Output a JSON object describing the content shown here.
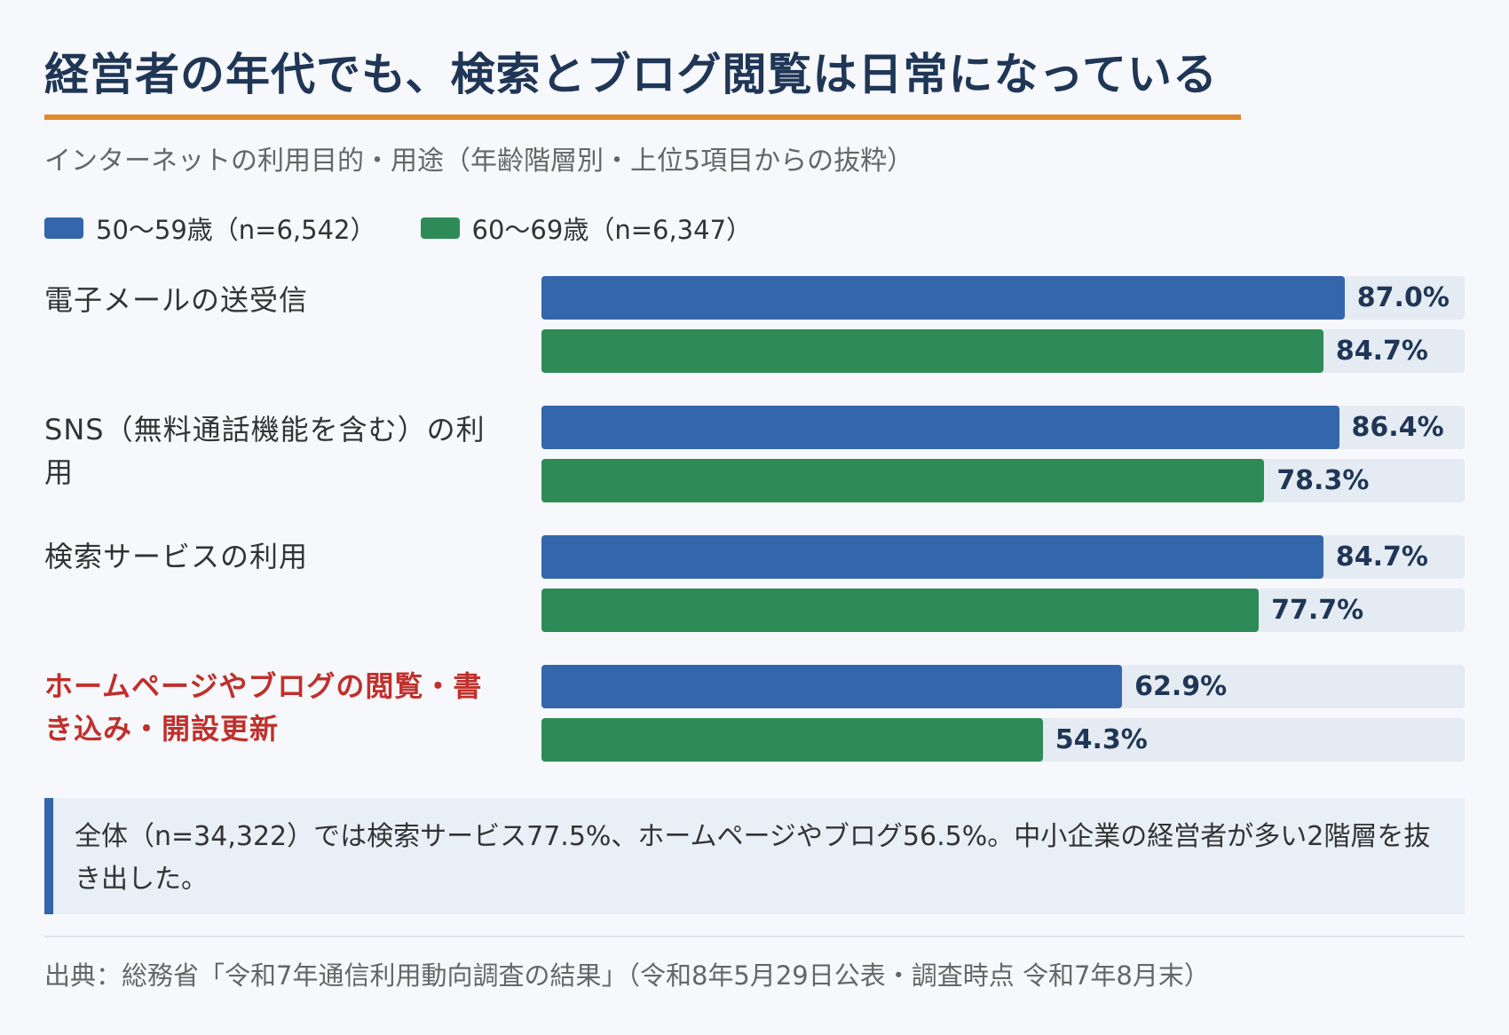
{
  "title": "経営者の年代でも、検索とブログ閲覧は日常になっている",
  "subtitle": "インターネットの利用目的・用途（年齢階層別・上位5項目からの抜粋）",
  "legend": [
    {
      "label": "50〜59歳（n=6,542）",
      "color": "#3366aa"
    },
    {
      "label": "60〜69歳（n=6,347）",
      "color": "#2e8b57"
    }
  ],
  "chart_data": {
    "type": "bar",
    "orientation": "horizontal",
    "categories": [
      "電子メールの送受信",
      "SNS（無料通話機能を含む）の利用",
      "検索サービスの利用",
      "ホームページやブログの閲覧・書き込み・開設更新"
    ],
    "highlighted_category": "ホームページやブログの閲覧・書き込み・開設更新",
    "series": [
      {
        "name": "50〜59歳（n=6,542）",
        "values": [
          87.0,
          86.4,
          84.7,
          62.9
        ],
        "color": "#3366aa"
      },
      {
        "name": "60〜69歳（n=6,347）",
        "values": [
          84.7,
          78.3,
          77.7,
          54.3
        ],
        "color": "#2e8b57"
      }
    ],
    "value_format": "%",
    "xlim": [
      0,
      100
    ],
    "legend_position": "top-left",
    "grid": false
  },
  "note": "全体（n=34,322）では検索サービス77.5%、ホームページやブログ56.5%。中小企業の経営者が多い2階層を抜き出した。",
  "source": "出典：総務省「令和7年通信利用動向調査の結果」（令和8年5月29日公表・調査時点 令和7年8月末）"
}
